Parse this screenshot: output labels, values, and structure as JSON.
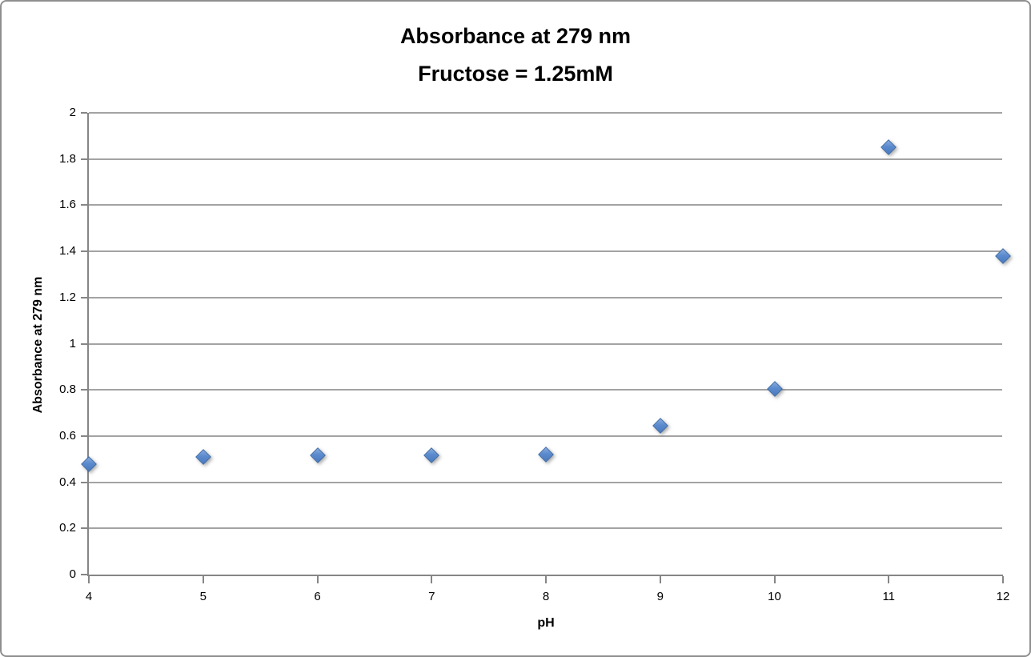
{
  "window": {
    "background_color": "#ffffff",
    "border_color": "#8f8f8f"
  },
  "chart_data": {
    "type": "scatter",
    "title": "Absorbance at 279 nm",
    "subtitle": "Fructose = 1.25mM",
    "xlabel": "pH",
    "ylabel": "Absorbance at 279 nm",
    "xlim": [
      4,
      12
    ],
    "ylim": [
      0,
      2
    ],
    "x_ticks": [
      4,
      5,
      6,
      7,
      8,
      9,
      10,
      11,
      12
    ],
    "y_ticks": [
      0,
      0.2,
      0.4,
      0.6,
      0.8,
      1,
      1.2,
      1.4,
      1.6,
      1.8,
      2
    ],
    "grid": "horizontal-only",
    "legend": "none",
    "series": [
      {
        "name": "Absorbance at 279 nm",
        "marker": "diamond",
        "marker_fill_color": "#5b8acd",
        "marker_border_color": "#3a69a5",
        "x": [
          4,
          5,
          6,
          7,
          8,
          9,
          10,
          11,
          12
        ],
        "y": [
          0.48,
          0.51,
          0.515,
          0.515,
          0.52,
          0.645,
          0.805,
          1.85,
          1.38
        ]
      }
    ],
    "styles": {
      "gridline_color": "#a3a3a3",
      "axis_color": "#868686",
      "text_color": "#000000"
    }
  }
}
